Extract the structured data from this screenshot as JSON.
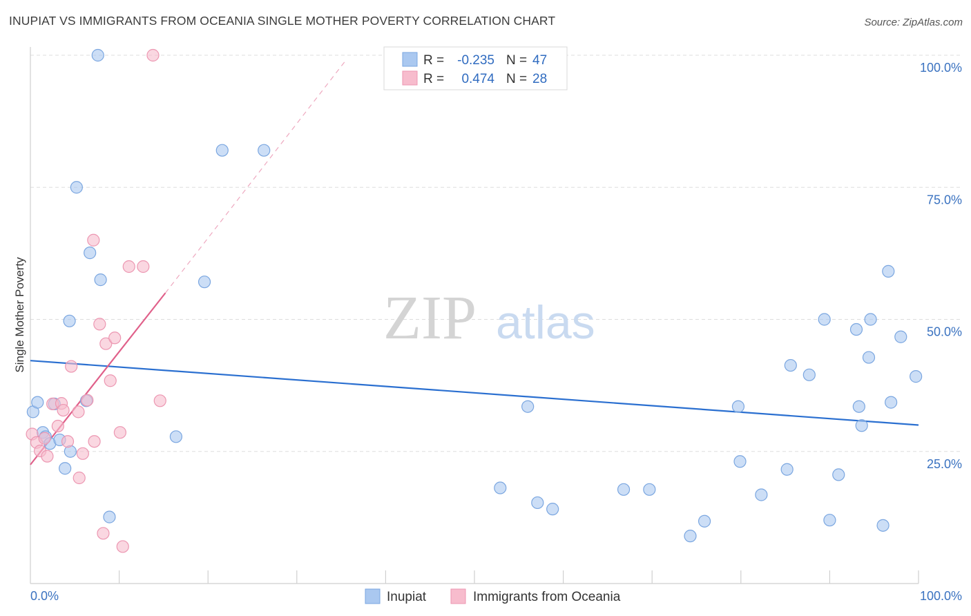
{
  "title": "INUPIAT VS IMMIGRANTS FROM OCEANIA SINGLE MOTHER POVERTY CORRELATION CHART",
  "source": "Source: ZipAtlas.com",
  "watermark": {
    "zip": "ZIP",
    "atlas": "atlas"
  },
  "colors": {
    "blue_fill": "#aac8f0",
    "blue_stroke": "#7aa6e0",
    "blue_line": "#2a6fd0",
    "pink_fill": "#f7bccd",
    "pink_stroke": "#ec96b1",
    "pink_line": "#e0608a",
    "grid": "#dddddd",
    "tick_text": "#3a72c0"
  },
  "chart_data": {
    "type": "scatter",
    "xlabel": "",
    "ylabel": "Single Mother Poverty",
    "xlim": [
      0,
      100
    ],
    "ylim": [
      0,
      100
    ],
    "x_tick_labels": {
      "left": "0.0%",
      "right": "100.0%"
    },
    "y_ticks": [
      {
        "value": 25,
        "label": "25.0%"
      },
      {
        "value": 50,
        "label": "50.0%"
      },
      {
        "value": 75,
        "label": "75.0%"
      },
      {
        "value": 100,
        "label": "100.0%"
      }
    ],
    "legend": {
      "r_label": "R =",
      "n_label": "N =",
      "entries": [
        {
          "series": "Inupiat",
          "r": "-0.235",
          "n": "47"
        },
        {
          "series": "Immigrants from Oceania",
          "r": "0.474",
          "n": "28"
        }
      ]
    },
    "series": [
      {
        "name": "Inupiat",
        "color": "blue",
        "trend": {
          "x0": 0,
          "y0": 42.2,
          "x1": 100,
          "y1": 30.0
        },
        "points": [
          [
            0.3,
            32.5
          ],
          [
            0.8,
            34.3
          ],
          [
            1.4,
            28.6
          ],
          [
            1.7,
            27.8
          ],
          [
            2.2,
            26.5
          ],
          [
            2.7,
            34.0
          ],
          [
            3.3,
            27.2
          ],
          [
            3.9,
            21.8
          ],
          [
            4.5,
            25.0
          ],
          [
            4.4,
            49.7
          ],
          [
            5.2,
            75.0
          ],
          [
            6.3,
            34.6
          ],
          [
            6.7,
            62.6
          ],
          [
            7.6,
            100
          ],
          [
            7.9,
            57.5
          ],
          [
            8.9,
            12.6
          ],
          [
            16.4,
            27.8
          ],
          [
            19.6,
            57.1
          ],
          [
            21.6,
            82.0
          ],
          [
            26.3,
            82.0
          ],
          [
            52.9,
            18.1
          ],
          [
            56.0,
            33.5
          ],
          [
            57.1,
            15.3
          ],
          [
            58.8,
            14.1
          ],
          [
            66.8,
            17.8
          ],
          [
            69.7,
            17.8
          ],
          [
            74.3,
            9.0
          ],
          [
            75.9,
            11.8
          ],
          [
            79.7,
            33.5
          ],
          [
            79.9,
            23.1
          ],
          [
            82.3,
            16.8
          ],
          [
            85.2,
            21.6
          ],
          [
            85.6,
            41.3
          ],
          [
            87.7,
            39.5
          ],
          [
            89.4,
            50.0
          ],
          [
            90.0,
            12.0
          ],
          [
            91.0,
            20.6
          ],
          [
            93.0,
            48.1
          ],
          [
            93.3,
            33.5
          ],
          [
            93.6,
            29.9
          ],
          [
            94.4,
            42.8
          ],
          [
            94.6,
            50.0
          ],
          [
            96.0,
            11.0
          ],
          [
            96.6,
            59.1
          ],
          [
            96.9,
            34.3
          ],
          [
            98.0,
            46.7
          ],
          [
            99.7,
            39.2
          ]
        ]
      },
      {
        "name": "Immigrants from Oceania",
        "color": "pink",
        "trend": {
          "x0": 0,
          "y0": 22.5,
          "x1": 15.2,
          "y1": 55.0,
          "dash_x1": 35.5,
          "dash_y1": 99.0
        },
        "points": [
          [
            0.2,
            28.3
          ],
          [
            0.7,
            26.7
          ],
          [
            1.1,
            25.1
          ],
          [
            1.6,
            27.5
          ],
          [
            1.9,
            24.1
          ],
          [
            2.5,
            34.0
          ],
          [
            3.1,
            29.8
          ],
          [
            3.5,
            34.1
          ],
          [
            3.7,
            32.8
          ],
          [
            4.2,
            26.9
          ],
          [
            4.6,
            41.1
          ],
          [
            5.4,
            32.5
          ],
          [
            5.5,
            20.0
          ],
          [
            5.9,
            24.6
          ],
          [
            6.4,
            34.7
          ],
          [
            7.1,
            65.0
          ],
          [
            7.2,
            26.9
          ],
          [
            7.8,
            49.1
          ],
          [
            8.2,
            9.5
          ],
          [
            8.5,
            45.4
          ],
          [
            9.0,
            38.4
          ],
          [
            9.5,
            46.5
          ],
          [
            10.1,
            28.6
          ],
          [
            10.4,
            7.0
          ],
          [
            11.1,
            60.0
          ],
          [
            12.7,
            60.0
          ],
          [
            13.8,
            100
          ],
          [
            14.6,
            34.6
          ]
        ]
      }
    ]
  },
  "bottom_legend": [
    "Inupiat",
    "Immigrants from Oceania"
  ]
}
